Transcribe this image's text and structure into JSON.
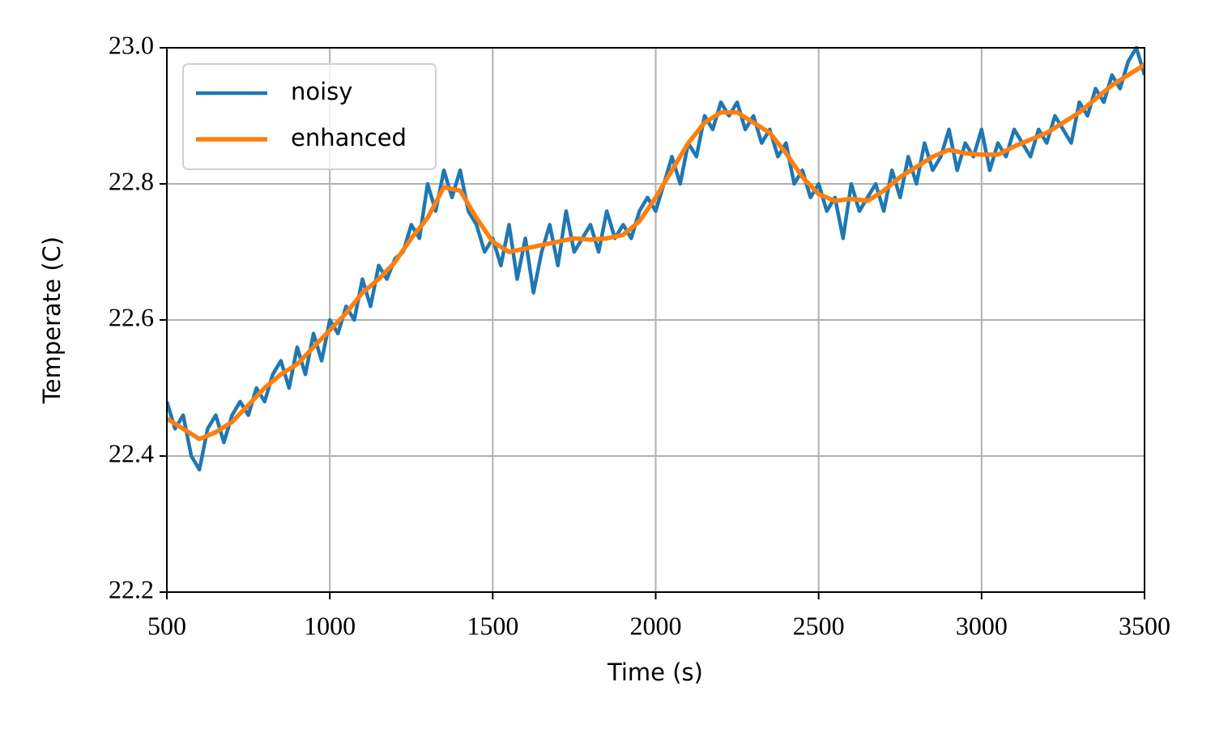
{
  "chart_data": {
    "type": "line",
    "xlabel": "Time (s)",
    "ylabel": "Temperate (C)",
    "xlim": [
      500,
      3500
    ],
    "xticks": [
      500,
      1000,
      1500,
      2000,
      2500,
      3000,
      3500
    ],
    "ylim": [
      22.2,
      23.0
    ],
    "yticks": [
      22.2,
      22.4,
      22.6,
      22.8,
      {
        "value": 23.0,
        "label": "23.0"
      }
    ],
    "grid": true,
    "legend": "upper left",
    "series": [
      {
        "name": "noisy",
        "color": "#1f77b4",
        "x": [
          500,
          525,
          550,
          575,
          600,
          625,
          650,
          675,
          700,
          725,
          750,
          775,
          800,
          825,
          850,
          875,
          900,
          925,
          950,
          975,
          1000,
          1025,
          1050,
          1075,
          1100,
          1125,
          1150,
          1175,
          1200,
          1225,
          1250,
          1275,
          1300,
          1325,
          1350,
          1375,
          1400,
          1425,
          1450,
          1475,
          1500,
          1525,
          1550,
          1575,
          1600,
          1625,
          1650,
          1675,
          1700,
          1725,
          1750,
          1775,
          1800,
          1825,
          1850,
          1875,
          1900,
          1925,
          1950,
          1975,
          2000,
          2025,
          2050,
          2075,
          2100,
          2125,
          2150,
          2175,
          2200,
          2225,
          2250,
          2275,
          2300,
          2325,
          2350,
          2375,
          2400,
          2425,
          2450,
          2475,
          2500,
          2525,
          2550,
          2575,
          2600,
          2625,
          2650,
          2675,
          2700,
          2725,
          2750,
          2775,
          2800,
          2825,
          2850,
          2875,
          2900,
          2925,
          2950,
          2975,
          3000,
          3025,
          3050,
          3075,
          3100,
          3125,
          3150,
          3175,
          3200,
          3225,
          3250,
          3275,
          3300,
          3325,
          3350,
          3375,
          3400,
          3425,
          3450,
          3475,
          3500
        ],
        "values": [
          22.48,
          22.44,
          22.46,
          22.4,
          22.38,
          22.44,
          22.46,
          22.42,
          22.46,
          22.48,
          22.46,
          22.5,
          22.48,
          22.52,
          22.54,
          22.5,
          22.56,
          22.52,
          22.58,
          22.54,
          22.6,
          22.58,
          22.62,
          22.6,
          22.66,
          22.62,
          22.68,
          22.66,
          22.69,
          22.7,
          22.74,
          22.72,
          22.8,
          22.76,
          22.82,
          22.78,
          22.82,
          22.76,
          22.74,
          22.7,
          22.72,
          22.68,
          22.74,
          22.66,
          22.72,
          22.64,
          22.7,
          22.74,
          22.68,
          22.76,
          22.7,
          22.72,
          22.74,
          22.7,
          22.76,
          22.72,
          22.74,
          22.72,
          22.76,
          22.78,
          22.76,
          22.8,
          22.84,
          22.8,
          22.86,
          22.84,
          22.9,
          22.88,
          22.92,
          22.9,
          22.92,
          22.88,
          22.9,
          22.86,
          22.88,
          22.84,
          22.86,
          22.8,
          22.82,
          22.78,
          22.8,
          22.76,
          22.78,
          22.72,
          22.8,
          22.76,
          22.78,
          22.8,
          22.76,
          22.82,
          22.78,
          22.84,
          22.8,
          22.86,
          22.82,
          22.84,
          22.88,
          22.82,
          22.86,
          22.84,
          22.88,
          22.82,
          22.86,
          22.84,
          22.88,
          22.86,
          22.84,
          22.88,
          22.86,
          22.9,
          22.88,
          22.86,
          22.92,
          22.9,
          22.94,
          22.92,
          22.96,
          22.94,
          22.98,
          23.0,
          22.96
        ]
      },
      {
        "name": "enhanced",
        "color": "#ff7f0e",
        "x": [
          500,
          550,
          600,
          650,
          700,
          750,
          800,
          850,
          900,
          950,
          1000,
          1050,
          1100,
          1150,
          1200,
          1250,
          1300,
          1350,
          1400,
          1450,
          1500,
          1550,
          1600,
          1650,
          1700,
          1750,
          1800,
          1850,
          1900,
          1950,
          2000,
          2050,
          2100,
          2150,
          2200,
          2250,
          2300,
          2350,
          2400,
          2450,
          2500,
          2550,
          2600,
          2650,
          2700,
          2750,
          2800,
          2850,
          2900,
          2950,
          3000,
          3050,
          3100,
          3150,
          3200,
          3250,
          3300,
          3350,
          3400,
          3450,
          3500
        ],
        "values": [
          22.455,
          22.44,
          22.425,
          22.435,
          22.45,
          22.475,
          22.5,
          22.52,
          22.535,
          22.56,
          22.585,
          22.61,
          22.64,
          22.66,
          22.685,
          22.72,
          22.75,
          22.795,
          22.79,
          22.75,
          22.715,
          22.7,
          22.705,
          22.71,
          22.715,
          22.72,
          22.718,
          22.72,
          22.725,
          22.745,
          22.78,
          22.82,
          22.86,
          22.89,
          22.905,
          22.905,
          22.89,
          22.875,
          22.845,
          22.81,
          22.785,
          22.775,
          22.778,
          22.775,
          22.79,
          22.81,
          22.825,
          22.84,
          22.85,
          22.845,
          22.843,
          22.843,
          22.855,
          22.865,
          22.875,
          22.89,
          22.905,
          22.925,
          22.945,
          22.96,
          22.975
        ]
      }
    ]
  }
}
